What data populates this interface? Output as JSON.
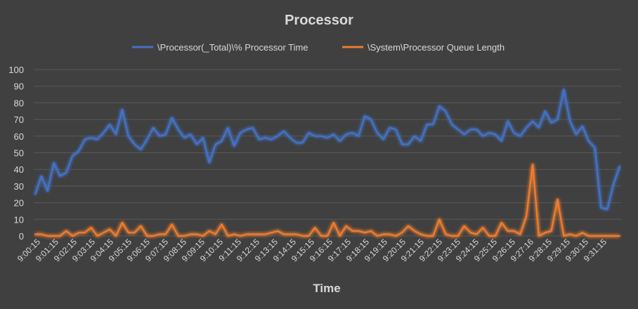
{
  "chart_data": {
    "type": "line",
    "title": "Processor",
    "xlabel": "Time",
    "ylabel": "",
    "ylim": [
      0,
      100
    ],
    "yticks": [
      0,
      10,
      20,
      30,
      40,
      50,
      60,
      70,
      80,
      90,
      100
    ],
    "grid": true,
    "legend_position": "top",
    "x_tick_labels": [
      "9:00:15",
      "9:01:15",
      "9:02:15",
      "9:03:15",
      "9:04:15",
      "9:05:15",
      "9:06:15",
      "9:07:15",
      "9:08:15",
      "9:09:15",
      "9:10:15",
      "9:11:15",
      "9:12:15",
      "9:13:15",
      "9:14:15",
      "9:15:15",
      "9:16:15",
      "9:17:15",
      "9:18:15",
      "9:19:15",
      "9:20:15",
      "9:21:15",
      "9:22:15",
      "9:23:15",
      "9:24:15",
      "9:25:15",
      "9:26:15",
      "9:27:16",
      "9:28:15",
      "9:29:15",
      "9:30:15",
      "9:31:15"
    ],
    "series": [
      {
        "name": "\\Processor(_Total)\\% Processor Time",
        "color": "#4472c4",
        "values": [
          25,
          36,
          27,
          44,
          36,
          38,
          48,
          51,
          58,
          59,
          58,
          62,
          67,
          61,
          76,
          60,
          55,
          52,
          58,
          65,
          60,
          61,
          71,
          64,
          59,
          61,
          55,
          59,
          44,
          55,
          57,
          65,
          54,
          62,
          64,
          65,
          58,
          59,
          58,
          60,
          63,
          59,
          56,
          56,
          62,
          60,
          60,
          59,
          61,
          57,
          61,
          62,
          60,
          72,
          70,
          62,
          58,
          65,
          64,
          55,
          55,
          60,
          57,
          67,
          67,
          78,
          75,
          67,
          64,
          61,
          64,
          64,
          60,
          62,
          61,
          57,
          69,
          62,
          60,
          65,
          69,
          65,
          75,
          68,
          70,
          88,
          69,
          61,
          66,
          57,
          53,
          17,
          16,
          31,
          42
        ]
      },
      {
        "name": "\\System\\Processor Queue Length",
        "color": "#ed7d31",
        "values": [
          1,
          1,
          0,
          0,
          0,
          3,
          0,
          2,
          2,
          5,
          0,
          2,
          4,
          0,
          8,
          2,
          2,
          6,
          0,
          0,
          1,
          1,
          7,
          0,
          0,
          1,
          1,
          0,
          3,
          1,
          7,
          0,
          1,
          0,
          1,
          1,
          1,
          1,
          2,
          3,
          1,
          1,
          1,
          0,
          0,
          5,
          0,
          0,
          8,
          0,
          6,
          3,
          3,
          2,
          3,
          0,
          1,
          1,
          0,
          2,
          6,
          3,
          1,
          0,
          0,
          10,
          1,
          0,
          0,
          6,
          2,
          1,
          5,
          0,
          0,
          8,
          3,
          3,
          1,
          12,
          43,
          0,
          2,
          3,
          22,
          0,
          1,
          0,
          2,
          0,
          0,
          0,
          0,
          0,
          0
        ]
      }
    ]
  }
}
